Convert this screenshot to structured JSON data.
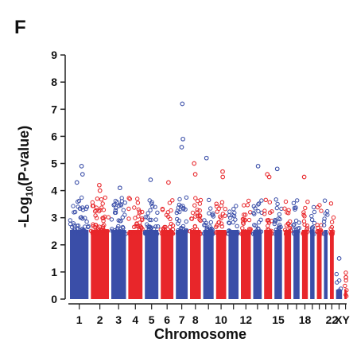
{
  "panel_label": "F",
  "chart_data": {
    "type": "scatter",
    "subtype": "manhattan",
    "title": "",
    "xlabel": "Chromosome",
    "ylabel": "-Log10(P-value)",
    "ylim": [
      0,
      9
    ],
    "y_ticks": [
      0,
      1,
      2,
      3,
      4,
      5,
      6,
      7,
      8,
      9
    ],
    "grid": false,
    "legend": "none",
    "x_tick_labels": [
      "1",
      "2",
      "3",
      "4",
      "5",
      "6",
      "7",
      "8",
      "10",
      "12",
      "15",
      "18",
      "22",
      "XY"
    ],
    "chromosomes": [
      "1",
      "2",
      "3",
      "4",
      "5",
      "6",
      "7",
      "8",
      "9",
      "10",
      "11",
      "12",
      "13",
      "14",
      "15",
      "16",
      "17",
      "18",
      "19",
      "20",
      "21",
      "22",
      "X",
      "Y"
    ],
    "colors": [
      "#3a4ea8",
      "#e8262a"
    ],
    "points": [
      {
        "chrom": "1",
        "y": 4.9
      },
      {
        "chrom": "1",
        "y": 4.6
      },
      {
        "chrom": "1",
        "y": 4.3
      },
      {
        "chrom": "2",
        "y": 4.2
      },
      {
        "chrom": "2",
        "y": 4.0
      },
      {
        "chrom": "3",
        "y": 4.1
      },
      {
        "chrom": "5",
        "y": 4.4
      },
      {
        "chrom": "6",
        "y": 4.3
      },
      {
        "chrom": "7",
        "y": 7.2
      },
      {
        "chrom": "7",
        "y": 5.9
      },
      {
        "chrom": "7",
        "y": 5.6
      },
      {
        "chrom": "8",
        "y": 5.0
      },
      {
        "chrom": "8",
        "y": 4.6
      },
      {
        "chrom": "9",
        "y": 5.2
      },
      {
        "chrom": "10",
        "y": 4.7
      },
      {
        "chrom": "10",
        "y": 4.5
      },
      {
        "chrom": "13",
        "y": 4.9
      },
      {
        "chrom": "14",
        "y": 4.6
      },
      {
        "chrom": "14",
        "y": 4.5
      },
      {
        "chrom": "15",
        "y": 4.8
      },
      {
        "chrom": "18",
        "y": 4.5
      },
      {
        "chrom": "X",
        "y": 1.5
      },
      {
        "chrom": "Y",
        "y": 0.8
      }
    ]
  }
}
